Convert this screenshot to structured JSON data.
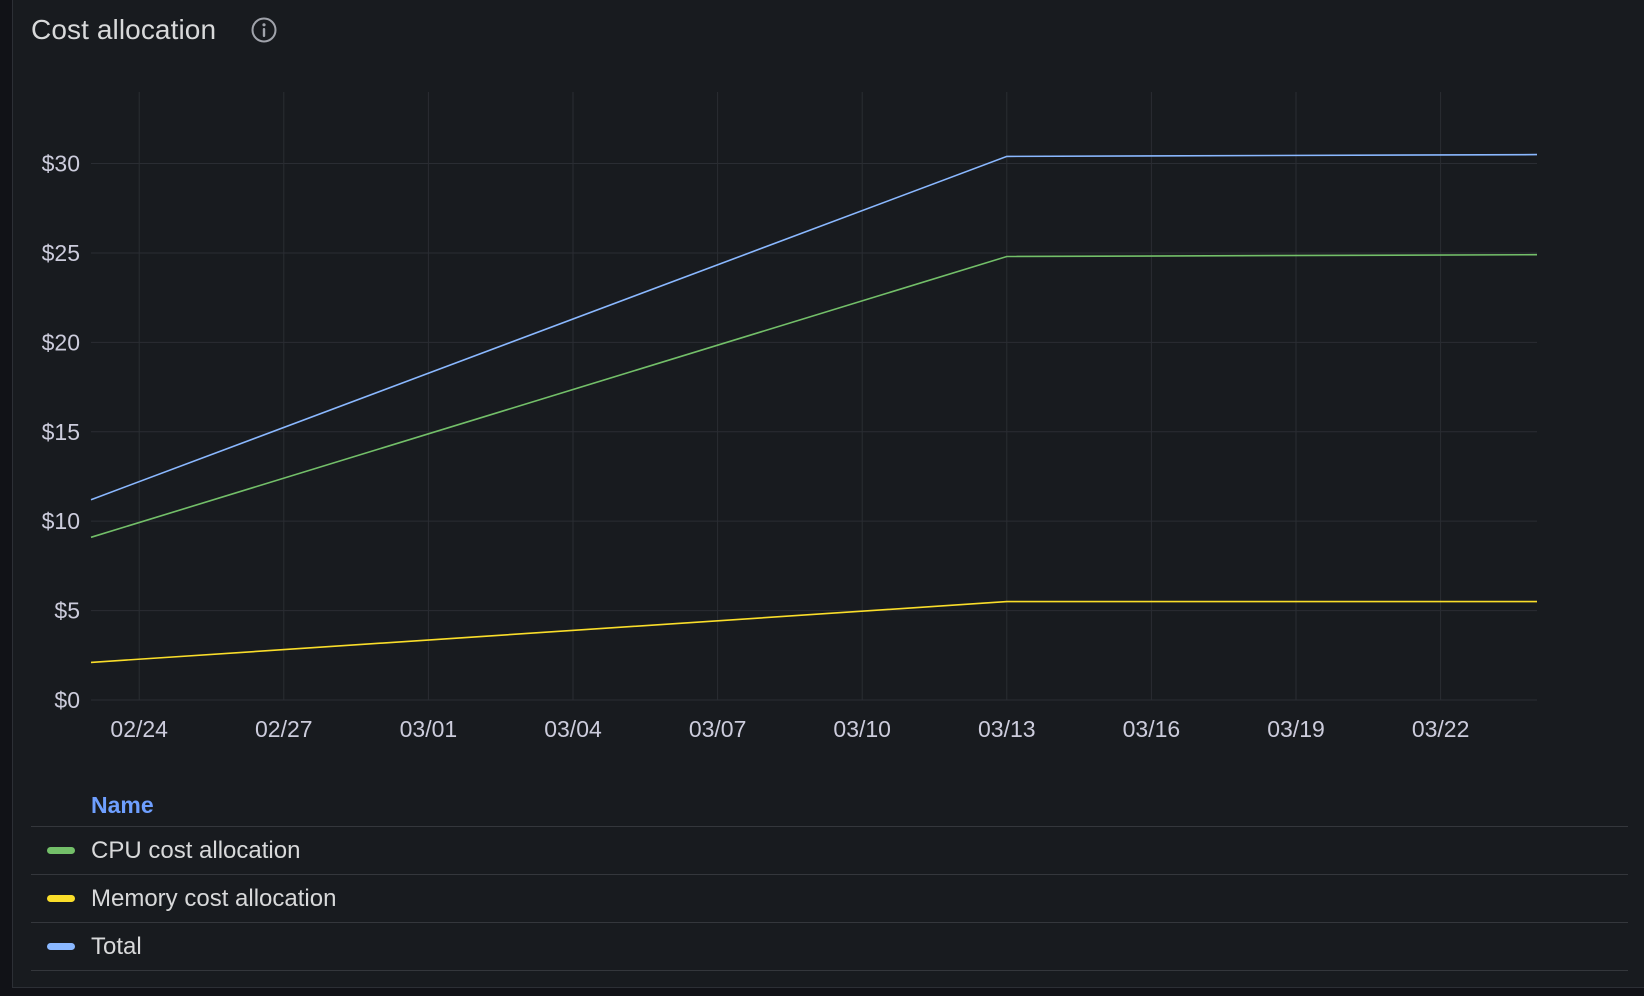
{
  "panel": {
    "title": "Cost allocation",
    "info_icon": "info-circle-icon"
  },
  "legend": {
    "header": "Name"
  },
  "chart_data": {
    "type": "line",
    "title": "Cost allocation",
    "x_ticks": [
      "02/24",
      "02/27",
      "03/01",
      "03/04",
      "03/07",
      "03/10",
      "03/13",
      "03/16",
      "03/19",
      "03/22"
    ],
    "y_ticks": [
      "$0",
      "$5",
      "$10",
      "$15",
      "$20",
      "$25",
      "$30"
    ],
    "xlim": [
      "02/23",
      "03/24"
    ],
    "ylim": [
      0,
      34
    ],
    "grid": true,
    "legend_placement": "bottom",
    "series": [
      {
        "name": "CPU cost allocation",
        "color": "#73bf69",
        "x": [
          "02/23",
          "03/13",
          "03/24"
        ],
        "y": [
          9.1,
          24.8,
          24.9
        ]
      },
      {
        "name": "Memory cost allocation",
        "color": "#fade2a",
        "x": [
          "02/23",
          "03/13",
          "03/24"
        ],
        "y": [
          2.1,
          5.5,
          5.5
        ]
      },
      {
        "name": "Total",
        "color": "#8ab8ff",
        "x": [
          "02/23",
          "03/13",
          "03/24"
        ],
        "y": [
          11.2,
          30.4,
          30.5
        ]
      }
    ]
  }
}
